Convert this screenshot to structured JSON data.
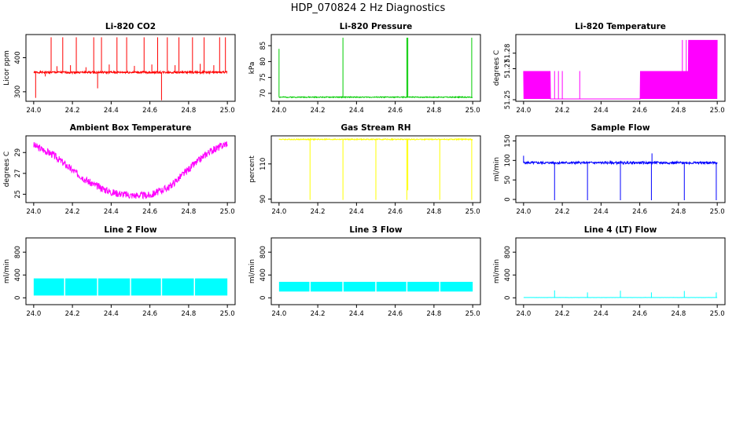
{
  "figure": {
    "title": "HDP_070824  2 Hz Diagnostics"
  },
  "chart_data": [
    {
      "type": "line",
      "title": "Li-820 CO2",
      "xlabel": "",
      "ylabel": "Licor ppm",
      "color": "#ff0000",
      "xlim": [
        23.96,
        25.04
      ],
      "ylim": [
        272,
        468
      ],
      "xticks": [
        "24.0",
        "24.2",
        "24.4",
        "24.6",
        "24.8",
        "25.0"
      ],
      "yticks": [
        {
          "v": 300,
          "label": "300"
        },
        {
          "v": 400,
          "label": "400"
        }
      ],
      "pattern": {
        "kind": "noise",
        "base": 357,
        "amp": 3,
        "noise_seed": 1
      },
      "spikes": [
        {
          "x": 24.09,
          "to": 460
        },
        {
          "x": 24.15,
          "to": 460
        },
        {
          "x": 24.22,
          "to": 460
        },
        {
          "x": 24.31,
          "to": 460
        },
        {
          "x": 24.35,
          "to": 460
        },
        {
          "x": 24.43,
          "to": 460
        },
        {
          "x": 24.48,
          "to": 460
        },
        {
          "x": 24.57,
          "to": 460
        },
        {
          "x": 24.64,
          "to": 460
        },
        {
          "x": 24.69,
          "to": 460
        },
        {
          "x": 24.75,
          "to": 460
        },
        {
          "x": 24.82,
          "to": 460
        },
        {
          "x": 24.88,
          "to": 460
        },
        {
          "x": 24.96,
          "to": 460
        },
        {
          "x": 24.99,
          "to": 460
        },
        {
          "x": 24.01,
          "to": 282
        },
        {
          "x": 24.33,
          "to": 310
        },
        {
          "x": 24.66,
          "to": 275
        },
        {
          "x": 24.06,
          "to": 345
        },
        {
          "x": 24.12,
          "to": 375
        },
        {
          "x": 24.19,
          "to": 378
        },
        {
          "x": 24.27,
          "to": 372
        },
        {
          "x": 24.39,
          "to": 380
        },
        {
          "x": 24.52,
          "to": 376
        },
        {
          "x": 24.61,
          "to": 380
        },
        {
          "x": 24.73,
          "to": 378
        },
        {
          "x": 24.86,
          "to": 382
        },
        {
          "x": 24.93,
          "to": 378
        }
      ]
    },
    {
      "type": "line",
      "title": "Li-820 Pressure",
      "xlabel": "",
      "ylabel": "kPa",
      "color": "#00cc00",
      "xlim": [
        23.96,
        25.04
      ],
      "ylim": [
        67.5,
        88.5
      ],
      "xticks": [
        "24.0",
        "24.2",
        "24.4",
        "24.6",
        "24.8",
        "25.0"
      ],
      "yticks": [
        {
          "v": 70,
          "label": "70"
        },
        {
          "v": 75,
          "label": "75"
        },
        {
          "v": 80,
          "label": "80"
        },
        {
          "v": 85,
          "label": "85"
        }
      ],
      "pattern": {
        "kind": "noise",
        "base": 68.8,
        "amp": 0.15,
        "noise_seed": 2
      },
      "spikes": [
        {
          "x": 24.0,
          "to": 84
        },
        {
          "x": 24.33,
          "to": 87.5
        },
        {
          "x": 24.66,
          "to": 87.5
        },
        {
          "x": 24.665,
          "to": 87.5
        },
        {
          "x": 24.995,
          "to": 87.5
        }
      ]
    },
    {
      "type": "line",
      "title": "Li-820 Temperature",
      "xlabel": "",
      "ylabel": "degrees C",
      "color": "#ff00ff",
      "xlim": [
        23.96,
        25.04
      ],
      "ylim": [
        51.249,
        51.292
      ],
      "xticks": [
        "24.0",
        "24.2",
        "24.4",
        "24.6",
        "24.8",
        "25.0"
      ],
      "yticks": [
        {
          "v": 51.25,
          "label": "51.25"
        },
        {
          "v": 51.27,
          "label": "51.27"
        },
        {
          "v": 51.28,
          "label": "51.28"
        }
      ],
      "pattern": {
        "kind": "switch",
        "low": 51.2505,
        "segments": [
          {
            "from": 24.0,
            "to": 24.14,
            "high": 51.2685
          },
          {
            "from": 24.14,
            "to": 24.6,
            "high": 51.2505
          },
          {
            "from": 24.6,
            "to": 24.85,
            "high": 51.2685
          },
          {
            "from": 24.85,
            "to": 25.0,
            "high": 51.2885
          }
        ]
      },
      "spikes": [
        {
          "x": 24.16,
          "to": 51.2685
        },
        {
          "x": 24.18,
          "to": 51.2685
        },
        {
          "x": 24.2,
          "to": 51.2685
        },
        {
          "x": 24.29,
          "to": 51.2685
        },
        {
          "x": 24.82,
          "to": 51.2885
        },
        {
          "x": 24.84,
          "to": 51.2885
        }
      ]
    },
    {
      "type": "line",
      "title": "Ambient Box Temperature",
      "xlabel": "",
      "ylabel": "degrees C",
      "color": "#ff00ff",
      "xlim": [
        23.96,
        25.04
      ],
      "ylim": [
        24.2,
        30.6
      ],
      "xticks": [
        "24.0",
        "24.2",
        "24.4",
        "24.6",
        "24.8",
        "25.0"
      ],
      "yticks": [
        {
          "v": 25,
          "label": "25"
        },
        {
          "v": 27,
          "label": "27"
        },
        {
          "v": 29,
          "label": "29"
        }
      ],
      "pattern": {
        "kind": "curve",
        "points": [
          [
            24.0,
            29.7
          ],
          [
            24.1,
            28.8
          ],
          [
            24.2,
            27.3
          ],
          [
            24.3,
            26.0
          ],
          [
            24.4,
            25.2
          ],
          [
            24.5,
            24.9
          ],
          [
            24.6,
            24.9
          ],
          [
            24.7,
            25.7
          ],
          [
            24.8,
            27.4
          ],
          [
            24.9,
            29.0
          ],
          [
            25.0,
            29.9
          ]
        ],
        "amp": 0.35,
        "noise_seed": 3
      },
      "spikes": []
    },
    {
      "type": "line",
      "title": "Gas Stream RH",
      "xlabel": "",
      "ylabel": "percent",
      "color": "#ffff00",
      "xlim": [
        23.96,
        25.04
      ],
      "ylim": [
        88,
        126
      ],
      "xticks": [
        "24.0",
        "24.2",
        "24.4",
        "24.6",
        "24.8",
        "25.0"
      ],
      "yticks": [
        {
          "v": 90,
          "label": "90"
        },
        {
          "v": 110,
          "label": "110"
        }
      ],
      "pattern": {
        "kind": "noise",
        "base": 124,
        "amp": 0.3,
        "noise_seed": 4
      },
      "spikes": [
        {
          "x": 24.16,
          "to": 89.5
        },
        {
          "x": 24.33,
          "to": 89.5
        },
        {
          "x": 24.5,
          "to": 89.5
        },
        {
          "x": 24.66,
          "to": 89.5
        },
        {
          "x": 24.665,
          "to": 95
        },
        {
          "x": 24.83,
          "to": 89.5
        },
        {
          "x": 24.995,
          "to": 89.5
        }
      ]
    },
    {
      "type": "line",
      "title": "Sample Flow",
      "xlabel": "",
      "ylabel": "ml/min",
      "color": "#0000ff",
      "xlim": [
        23.96,
        25.04
      ],
      "ylim": [
        -8,
        163
      ],
      "xticks": [
        "24.0",
        "24.2",
        "24.4",
        "24.6",
        "24.8",
        "25.0"
      ],
      "yticks": [
        {
          "v": 0,
          "label": "0"
        },
        {
          "v": 50,
          "label": "50"
        },
        {
          "v": 100,
          "label": "100"
        },
        {
          "v": 150,
          "label": "150"
        }
      ],
      "pattern": {
        "kind": "noise",
        "base": 94,
        "amp": 3,
        "noise_seed": 5
      },
      "spikes": [
        {
          "x": 24.0,
          "to": 112
        },
        {
          "x": 24.16,
          "to": -2
        },
        {
          "x": 24.33,
          "to": -2
        },
        {
          "x": 24.5,
          "to": -2
        },
        {
          "x": 24.66,
          "to": -2
        },
        {
          "x": 24.663,
          "to": 118
        },
        {
          "x": 24.83,
          "to": -2
        },
        {
          "x": 24.995,
          "to": -2
        }
      ]
    },
    {
      "type": "line",
      "title": "Line 2 Flow",
      "xlabel": "",
      "ylabel": "ml/min",
      "color": "#00ffff",
      "xlim": [
        23.96,
        25.04
      ],
      "ylim": [
        -120,
        1050
      ],
      "xticks": [
        "24.0",
        "24.2",
        "24.4",
        "24.6",
        "24.8",
        "25.0"
      ],
      "yticks": [
        {
          "v": 0,
          "label": "0"
        },
        {
          "v": 400,
          "label": "400"
        },
        {
          "v": 800,
          "label": "800"
        }
      ],
      "pattern": {
        "kind": "band",
        "low": 40,
        "high": 340,
        "gaps": [
          24.16,
          24.33,
          24.5,
          24.66,
          24.83
        ]
      },
      "spikes": []
    },
    {
      "type": "line",
      "title": "Line 3 Flow",
      "xlabel": "",
      "ylabel": "ml/min",
      "color": "#00ffff",
      "xlim": [
        23.96,
        25.04
      ],
      "ylim": [
        -120,
        1050
      ],
      "xticks": [
        "24.0",
        "24.2",
        "24.4",
        "24.6",
        "24.8",
        "25.0"
      ],
      "yticks": [
        {
          "v": 0,
          "label": "0"
        },
        {
          "v": 400,
          "label": "400"
        },
        {
          "v": 800,
          "label": "800"
        }
      ],
      "pattern": {
        "kind": "band",
        "low": 110,
        "high": 280,
        "gaps": [
          24.16,
          24.33,
          24.5,
          24.66,
          24.83
        ]
      },
      "spikes": []
    },
    {
      "type": "line",
      "title": "Line 4 (LT) Flow",
      "xlabel": "",
      "ylabel": "ml/min",
      "color": "#00ffff",
      "xlim": [
        23.96,
        25.04
      ],
      "ylim": [
        -120,
        1050
      ],
      "xticks": [
        "24.0",
        "24.2",
        "24.4",
        "24.6",
        "24.8",
        "25.0"
      ],
      "yticks": [
        {
          "v": 0,
          "label": "0"
        },
        {
          "v": 400,
          "label": "400"
        },
        {
          "v": 800,
          "label": "800"
        }
      ],
      "pattern": {
        "kind": "noise",
        "base": 5,
        "amp": 1,
        "noise_seed": 6
      },
      "spikes": [
        {
          "x": 24.16,
          "to": 130
        },
        {
          "x": 24.33,
          "to": 95
        },
        {
          "x": 24.5,
          "to": 125
        },
        {
          "x": 24.66,
          "to": 95
        },
        {
          "x": 24.83,
          "to": 120
        },
        {
          "x": 24.995,
          "to": 95
        }
      ]
    }
  ]
}
